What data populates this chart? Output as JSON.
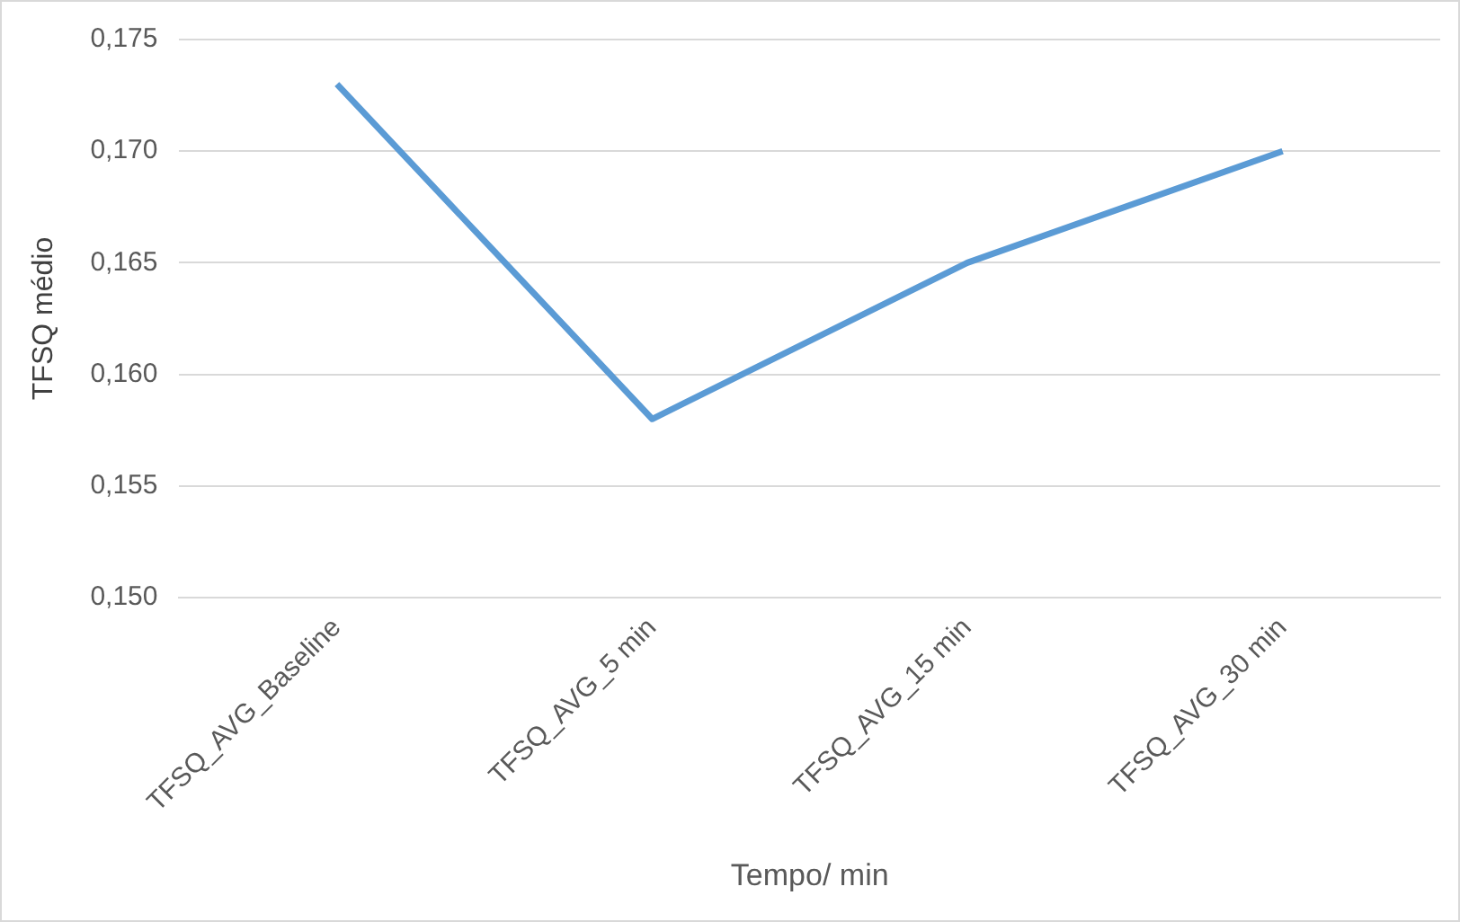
{
  "chart_data": {
    "type": "line",
    "xlabel": "Tempo/ min",
    "ylabel": "TFSQ médio",
    "categories": [
      "TFSQ_AVG_Baseline",
      "TFSQ_AVG_5 min",
      "TFSQ_AVG_15 min",
      "TFSQ_AVG_30 min"
    ],
    "series": [
      {
        "color": "#5b9bd5",
        "values": [
          0.173,
          0.158,
          0.165,
          0.17
        ]
      }
    ],
    "ylim": [
      0.15,
      0.175
    ],
    "yticks": [
      {
        "value": 0.15,
        "label": "0,150"
      },
      {
        "value": 0.155,
        "label": "0,155"
      },
      {
        "value": 0.16,
        "label": "0,160"
      },
      {
        "value": 0.165,
        "label": "0,165"
      },
      {
        "value": 0.17,
        "label": "0,170"
      },
      {
        "value": 0.175,
        "label": "0,175"
      }
    ],
    "grid": "y",
    "legend": false,
    "marker": "none",
    "line_style": "solid"
  }
}
